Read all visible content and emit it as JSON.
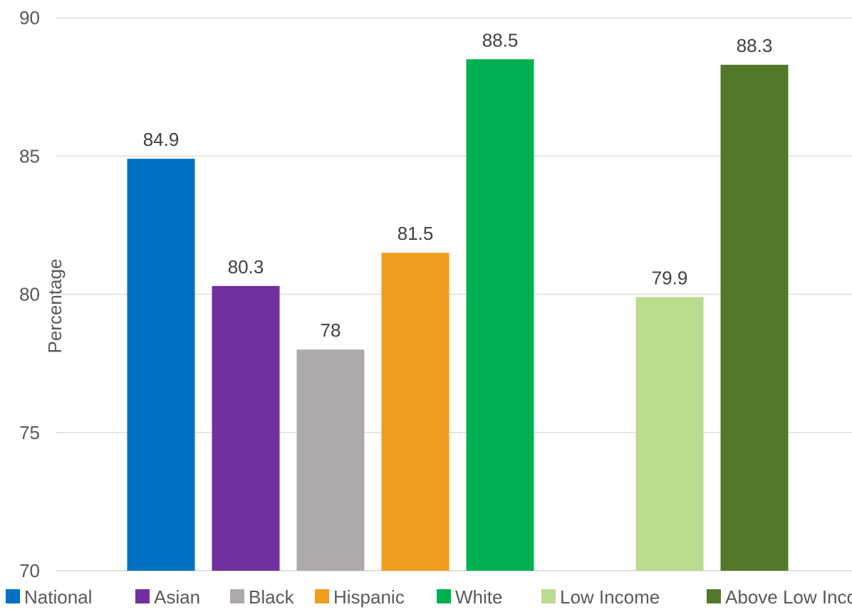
{
  "chart_data": {
    "type": "bar",
    "title": "",
    "xlabel": "",
    "ylabel": "Percentage",
    "ylim": [
      70,
      90
    ],
    "yticks": [
      70,
      75,
      80,
      85,
      90
    ],
    "grid": true,
    "legend_position": "bottom",
    "categories": [
      "National",
      "Asian",
      "Black",
      "Hispanic",
      "White",
      "",
      "Low Income",
      "Above Low Income"
    ],
    "values": [
      84.9,
      80.3,
      78,
      81.5,
      88.5,
      null,
      79.9,
      88.3
    ],
    "data_labels": [
      "84.9",
      "80.3",
      "78",
      "81.5",
      "88.5",
      "",
      "79.9",
      "88.3"
    ],
    "colors": [
      "#0070c0",
      "#7030a0",
      "#aeaaaa",
      "#f09c1e",
      "#00b050",
      "",
      "#bbdb8f",
      "#53782b"
    ],
    "legend": [
      {
        "label": "National",
        "color": "#0070c0"
      },
      {
        "label": "Asian",
        "color": "#7030a0"
      },
      {
        "label": "Black",
        "color": "#aeaaaa"
      },
      {
        "label": "Hispanic",
        "color": "#f09c1e"
      },
      {
        "label": "White",
        "color": "#00b050"
      },
      {
        "label": "Low Income",
        "color": "#bbdb8f"
      },
      {
        "label": "Above Low Income",
        "color": "#53782b"
      }
    ]
  }
}
